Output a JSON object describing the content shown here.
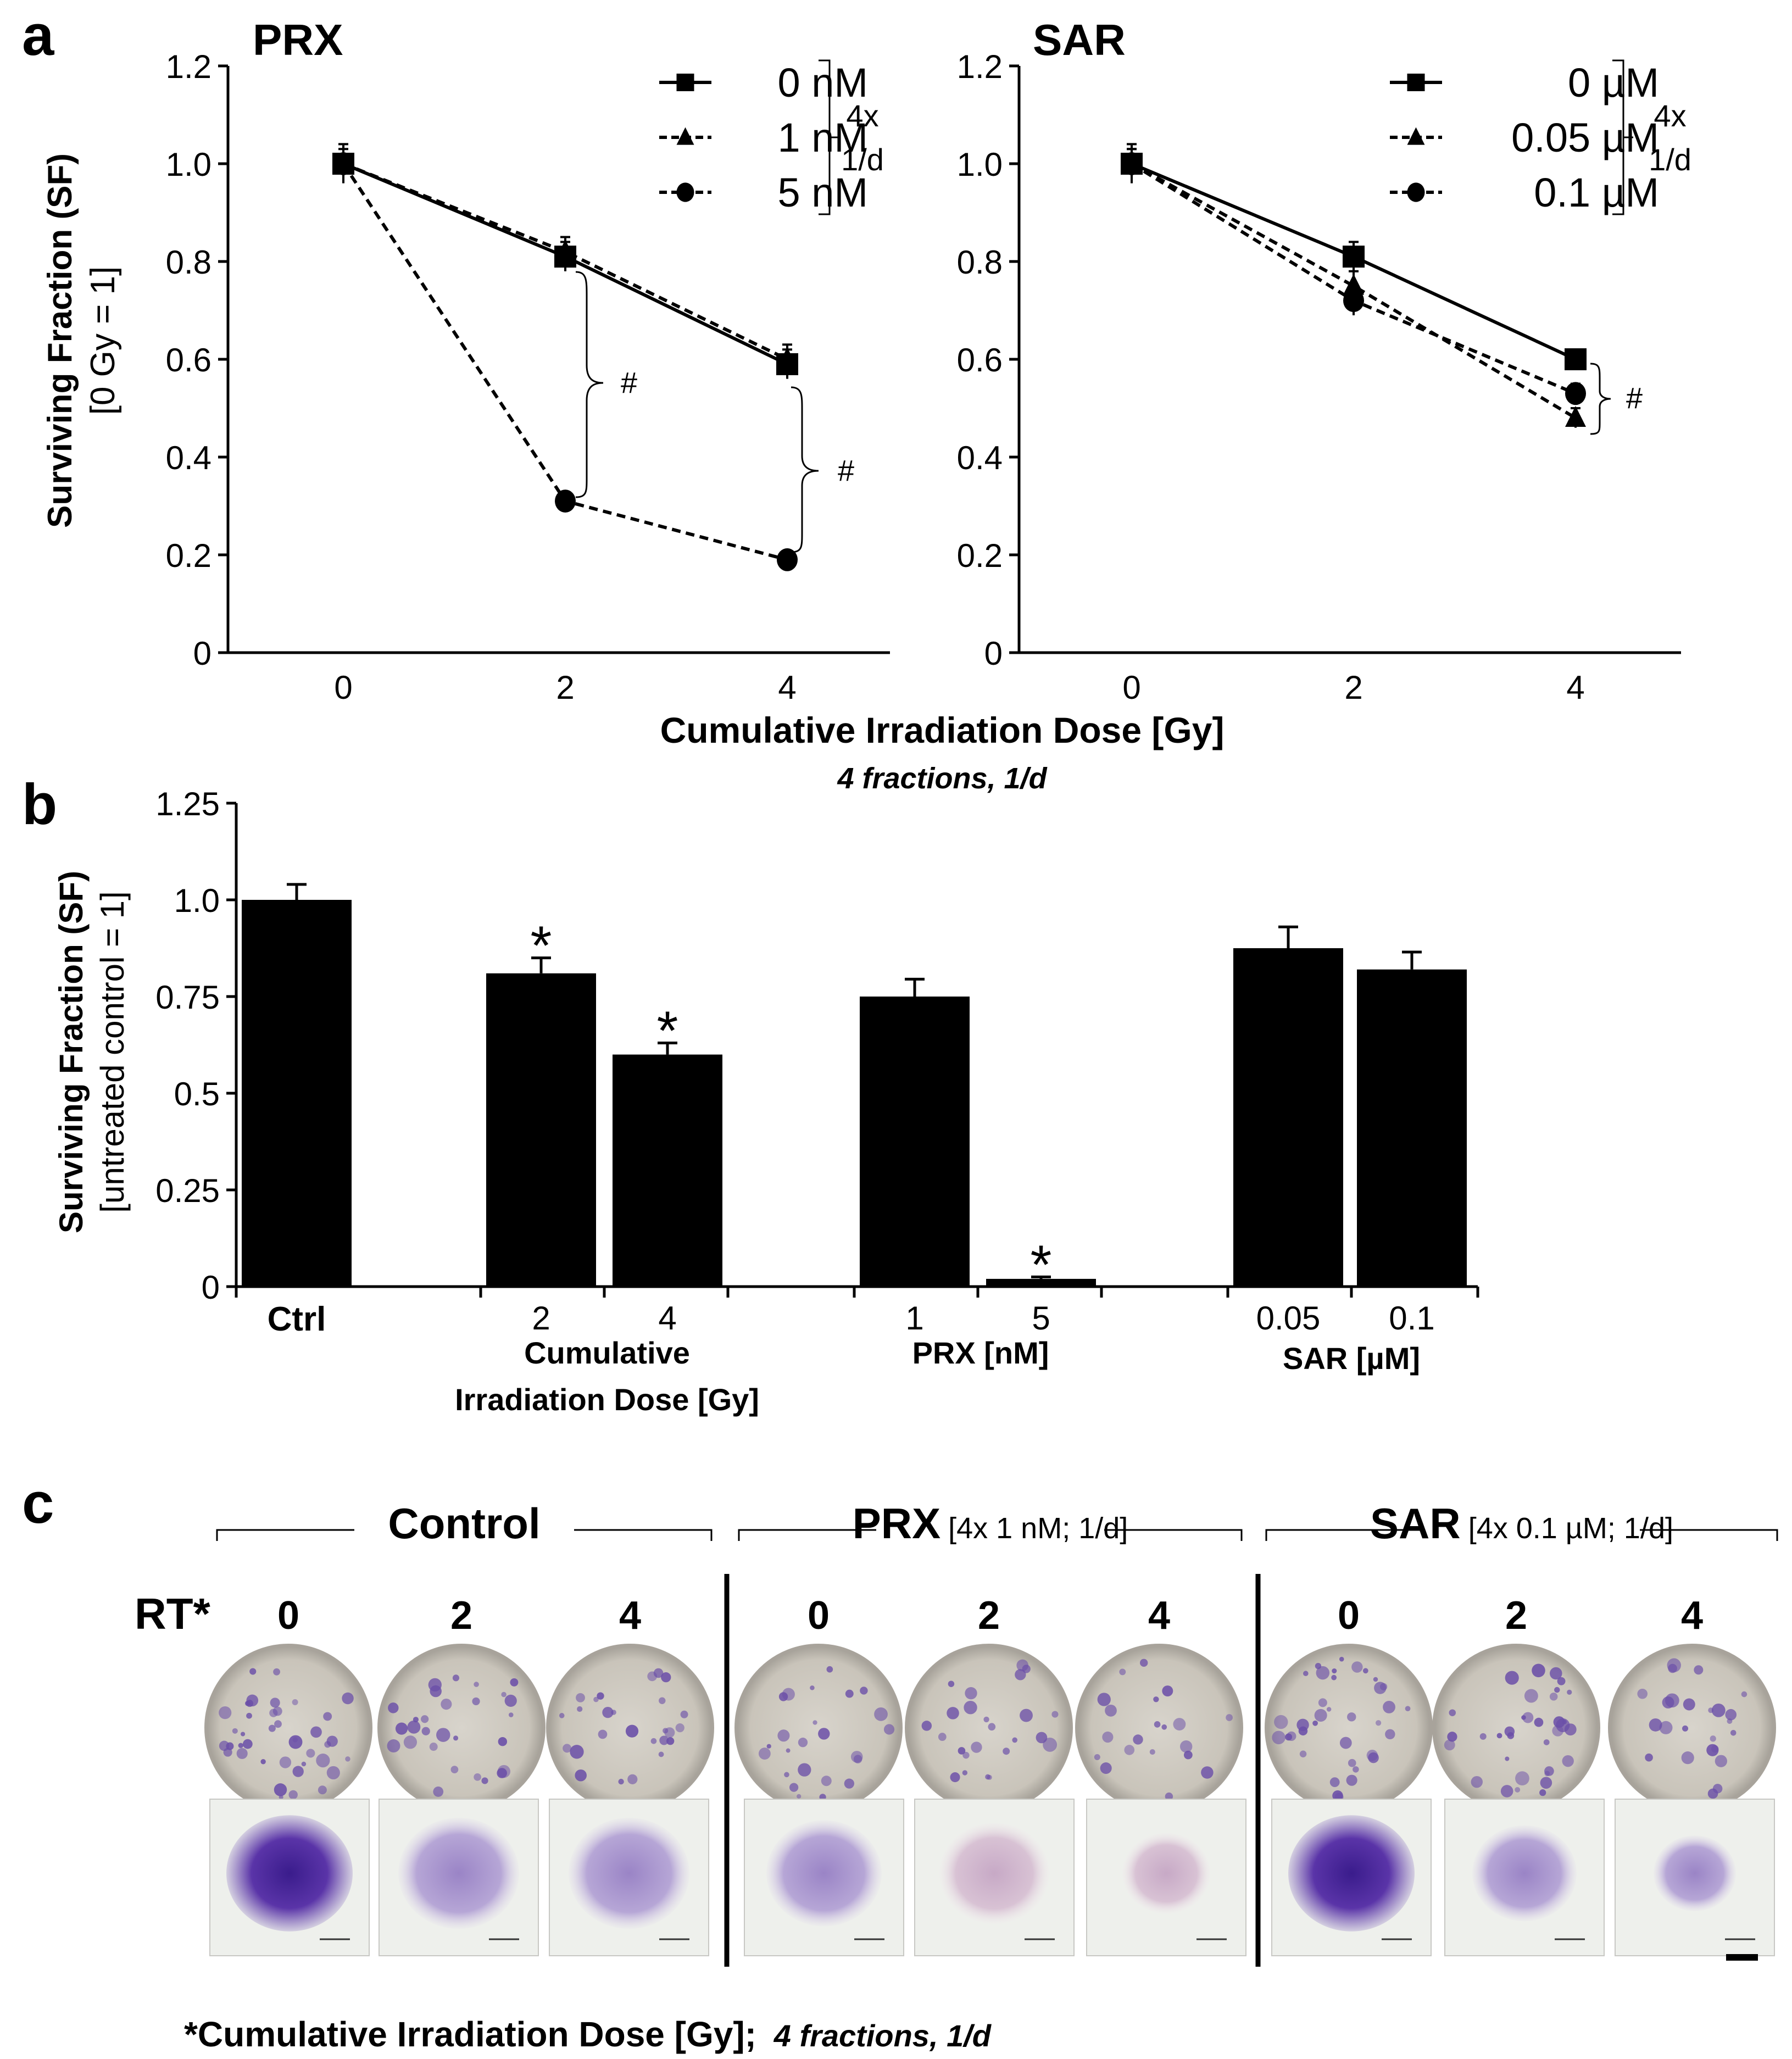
{
  "panel_a": {
    "label": "a",
    "left_title": "PRX",
    "right_title": "SAR",
    "ylabel_line1": "Surviving Fraction (SF)",
    "ylabel_line2": "[0 Gy = 1]",
    "xlabel": "Cumulative Irradiation Dose [Gy]",
    "xlabel_sub": "4 fractions, 1/d",
    "legend_bracket_line1": "4x",
    "legend_bracket_line2": "1/d",
    "hash_mark": "#"
  },
  "panel_b": {
    "label": "b",
    "ylabel_line1": "Surviving Fraction (SF)",
    "ylabel_line2": "[untreated control = 1]",
    "group_label_ctrl": "Ctrl",
    "group_label_rt_line1": "Cumulative",
    "group_label_rt_line2": "Irradiation Dose [Gy]",
    "group_label_prx": "PRX [nM]",
    "group_label_sar": "SAR [µM]",
    "star": "*"
  },
  "panel_c": {
    "label": "c",
    "row_label": "RT*",
    "groups": [
      {
        "title": "Control",
        "subtitle": "",
        "doses": [
          "0",
          "2",
          "4"
        ]
      },
      {
        "title": "PRX",
        "subtitle": "[4x 1 nM; 1/d]",
        "doses": [
          "0",
          "2",
          "4"
        ]
      },
      {
        "title": "SAR",
        "subtitle": "[4x 0.1 µM; 1/d]",
        "doses": [
          "0",
          "2",
          "4"
        ]
      }
    ],
    "footnote_main": "*Cumulative Irradiation Dose [Gy];",
    "footnote_italic": "4 fractions, 1/d"
  },
  "chart_data": [
    {
      "type": "line",
      "title": "PRX",
      "x": [
        0,
        2,
        4
      ],
      "xlabel": "Cumulative Irradiation Dose [Gy]",
      "ylabel": "Surviving Fraction (SF) [0 Gy = 1]",
      "xlim": [
        -1,
        5
      ],
      "ylim": [
        0,
        1.2
      ],
      "xticks": [
        "0",
        "2",
        "4"
      ],
      "yticks": [
        "0",
        "0.2",
        "0.4",
        "0.6",
        "0.8",
        "1.0",
        "1.2"
      ],
      "legend_position": "top-right",
      "series": [
        {
          "name": "0 nM",
          "marker": "square",
          "line": "solid",
          "values": [
            1.0,
            0.81,
            0.59
          ],
          "errors": [
            0.04,
            0.03,
            0.03
          ]
        },
        {
          "name": "1 nM",
          "marker": "triangle",
          "line": "dash",
          "values": [
            1.0,
            0.82,
            0.6
          ],
          "errors": [
            0.03,
            0.03,
            0.03
          ]
        },
        {
          "name": "5 nM",
          "marker": "circle",
          "line": "dash",
          "values": [
            1.0,
            0.31,
            0.19
          ],
          "errors": [
            0.02,
            0.01,
            0.01
          ]
        }
      ],
      "annotations": [
        "#",
        "#"
      ]
    },
    {
      "type": "line",
      "title": "SAR",
      "x": [
        0,
        2,
        4
      ],
      "xlabel": "Cumulative Irradiation Dose [Gy]",
      "ylabel": "Surviving Fraction (SF) [0 Gy = 1]",
      "xlim": [
        -1,
        5
      ],
      "ylim": [
        0,
        1.2
      ],
      "xticks": [
        "0",
        "2",
        "4"
      ],
      "yticks": [
        "0",
        "0.2",
        "0.4",
        "0.6",
        "0.8",
        "1.0",
        "1.2"
      ],
      "legend_position": "top-right",
      "series": [
        {
          "name": "0 µM",
          "marker": "square",
          "line": "solid",
          "values": [
            1.0,
            0.81,
            0.6
          ],
          "errors": [
            0.04,
            0.03,
            0.02
          ]
        },
        {
          "name": "0.05 µM",
          "marker": "triangle",
          "line": "dash",
          "values": [
            1.0,
            0.75,
            0.48
          ],
          "errors": [
            0.03,
            0.03,
            0.02
          ]
        },
        {
          "name": "0.1 µM",
          "marker": "circle",
          "line": "dash",
          "values": [
            1.0,
            0.72,
            0.53
          ],
          "errors": [
            0.03,
            0.03,
            0.02
          ]
        }
      ],
      "annotations": [
        "#"
      ]
    },
    {
      "type": "bar",
      "title": "",
      "ylabel": "Surviving Fraction (SF) [untreated control = 1]",
      "ylim": [
        0,
        1.25
      ],
      "yticks": [
        "0",
        "0.25",
        "0.5",
        "0.75",
        "1.0",
        "1.25"
      ],
      "categories": [
        "Ctrl",
        "2",
        "4",
        "1",
        "5",
        "0.05",
        "0.1"
      ],
      "values": [
        1.0,
        0.81,
        0.6,
        0.75,
        0.02,
        0.875,
        0.82
      ],
      "errors": [
        0.04,
        0.04,
        0.03,
        0.045,
        0.005,
        0.055,
        0.045
      ],
      "significant": [
        false,
        true,
        true,
        false,
        true,
        false,
        false
      ]
    }
  ]
}
